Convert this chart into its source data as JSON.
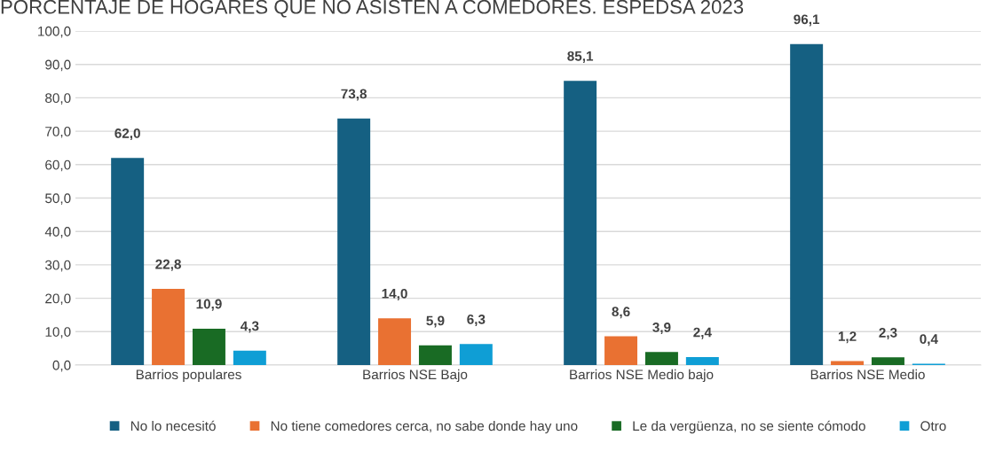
{
  "chart_data": {
    "type": "bar",
    "title": "PORCENTAJE DE HOGARES QUE NO ASISTEN A COMEDORES. ESPEDSA 2023",
    "categories": [
      "Barrios populares",
      "Barrios NSE Bajo",
      "Barrios NSE Medio bajo",
      "Barrios NSE Medio"
    ],
    "series": [
      {
        "name": "No lo necesitó",
        "color": "#156082",
        "values": [
          62.0,
          73.8,
          85.1,
          96.1
        ],
        "value_labels": [
          "62,0",
          "73,8",
          "85,1",
          "96,1"
        ]
      },
      {
        "name": "No tiene comedores cerca, no sabe donde hay uno",
        "color": "#e97132",
        "values": [
          22.8,
          14.0,
          8.6,
          1.2
        ],
        "value_labels": [
          "22,8",
          "14,0",
          "8,6",
          "1,2"
        ]
      },
      {
        "name": "Le da vergüenza, no se siente cómodo",
        "color": "#196b24",
        "values": [
          10.9,
          5.9,
          3.9,
          2.3
        ],
        "value_labels": [
          "10,9",
          "5,9",
          "3,9",
          "2,3"
        ]
      },
      {
        "name": "Otro",
        "color": "#0f9ed5",
        "values": [
          4.3,
          6.3,
          2.4,
          0.4
        ],
        "value_labels": [
          "4,3",
          "6,3",
          "2,4",
          "0,4"
        ]
      }
    ],
    "ylim": [
      0,
      100
    ],
    "yticks": [
      {
        "value": 0,
        "label": "0,0"
      },
      {
        "value": 10,
        "label": "10,0"
      },
      {
        "value": 20,
        "label": "20,0"
      },
      {
        "value": 30,
        "label": "30,0"
      },
      {
        "value": 40,
        "label": "40,0"
      },
      {
        "value": 50,
        "label": "50,0"
      },
      {
        "value": 60,
        "label": "60,0"
      },
      {
        "value": 70,
        "label": "70,0"
      },
      {
        "value": 80,
        "label": "80,0"
      },
      {
        "value": 90,
        "label": "90,0"
      },
      {
        "value": 100,
        "label": "100,0"
      }
    ],
    "grid": "y",
    "legend": "bottom"
  }
}
